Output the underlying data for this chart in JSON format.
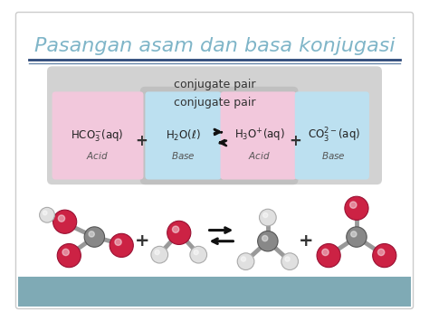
{
  "title": "Pasangan asam dan basa konjugasi",
  "title_color": "#7fb5c8",
  "title_fontsize": 16,
  "bg_color": "#ffffff",
  "bottom_bar_color": "#7faab5",
  "conj_pair_outer_text": "conjugate pair",
  "conj_pair_inner_text": "conjugate pair",
  "outer_box_color": "#cccccc",
  "inner_box_color": "#c0c0c0",
  "hco3_bg": "#f2c8dc",
  "h2o_bg": "#bce0f0",
  "h3o_bg": "#f2c8dc",
  "co3_bg": "#bce0f0",
  "text_color": "#333333",
  "underline1_color": "#2e4a7a",
  "underline2_color": "#6888aa",
  "O_color": "#cc2244",
  "O_edge": "#991133",
  "C_color": "#888888",
  "C_edge": "#555555",
  "H_color": "#e0e0e0",
  "H_edge": "#aaaaaa"
}
